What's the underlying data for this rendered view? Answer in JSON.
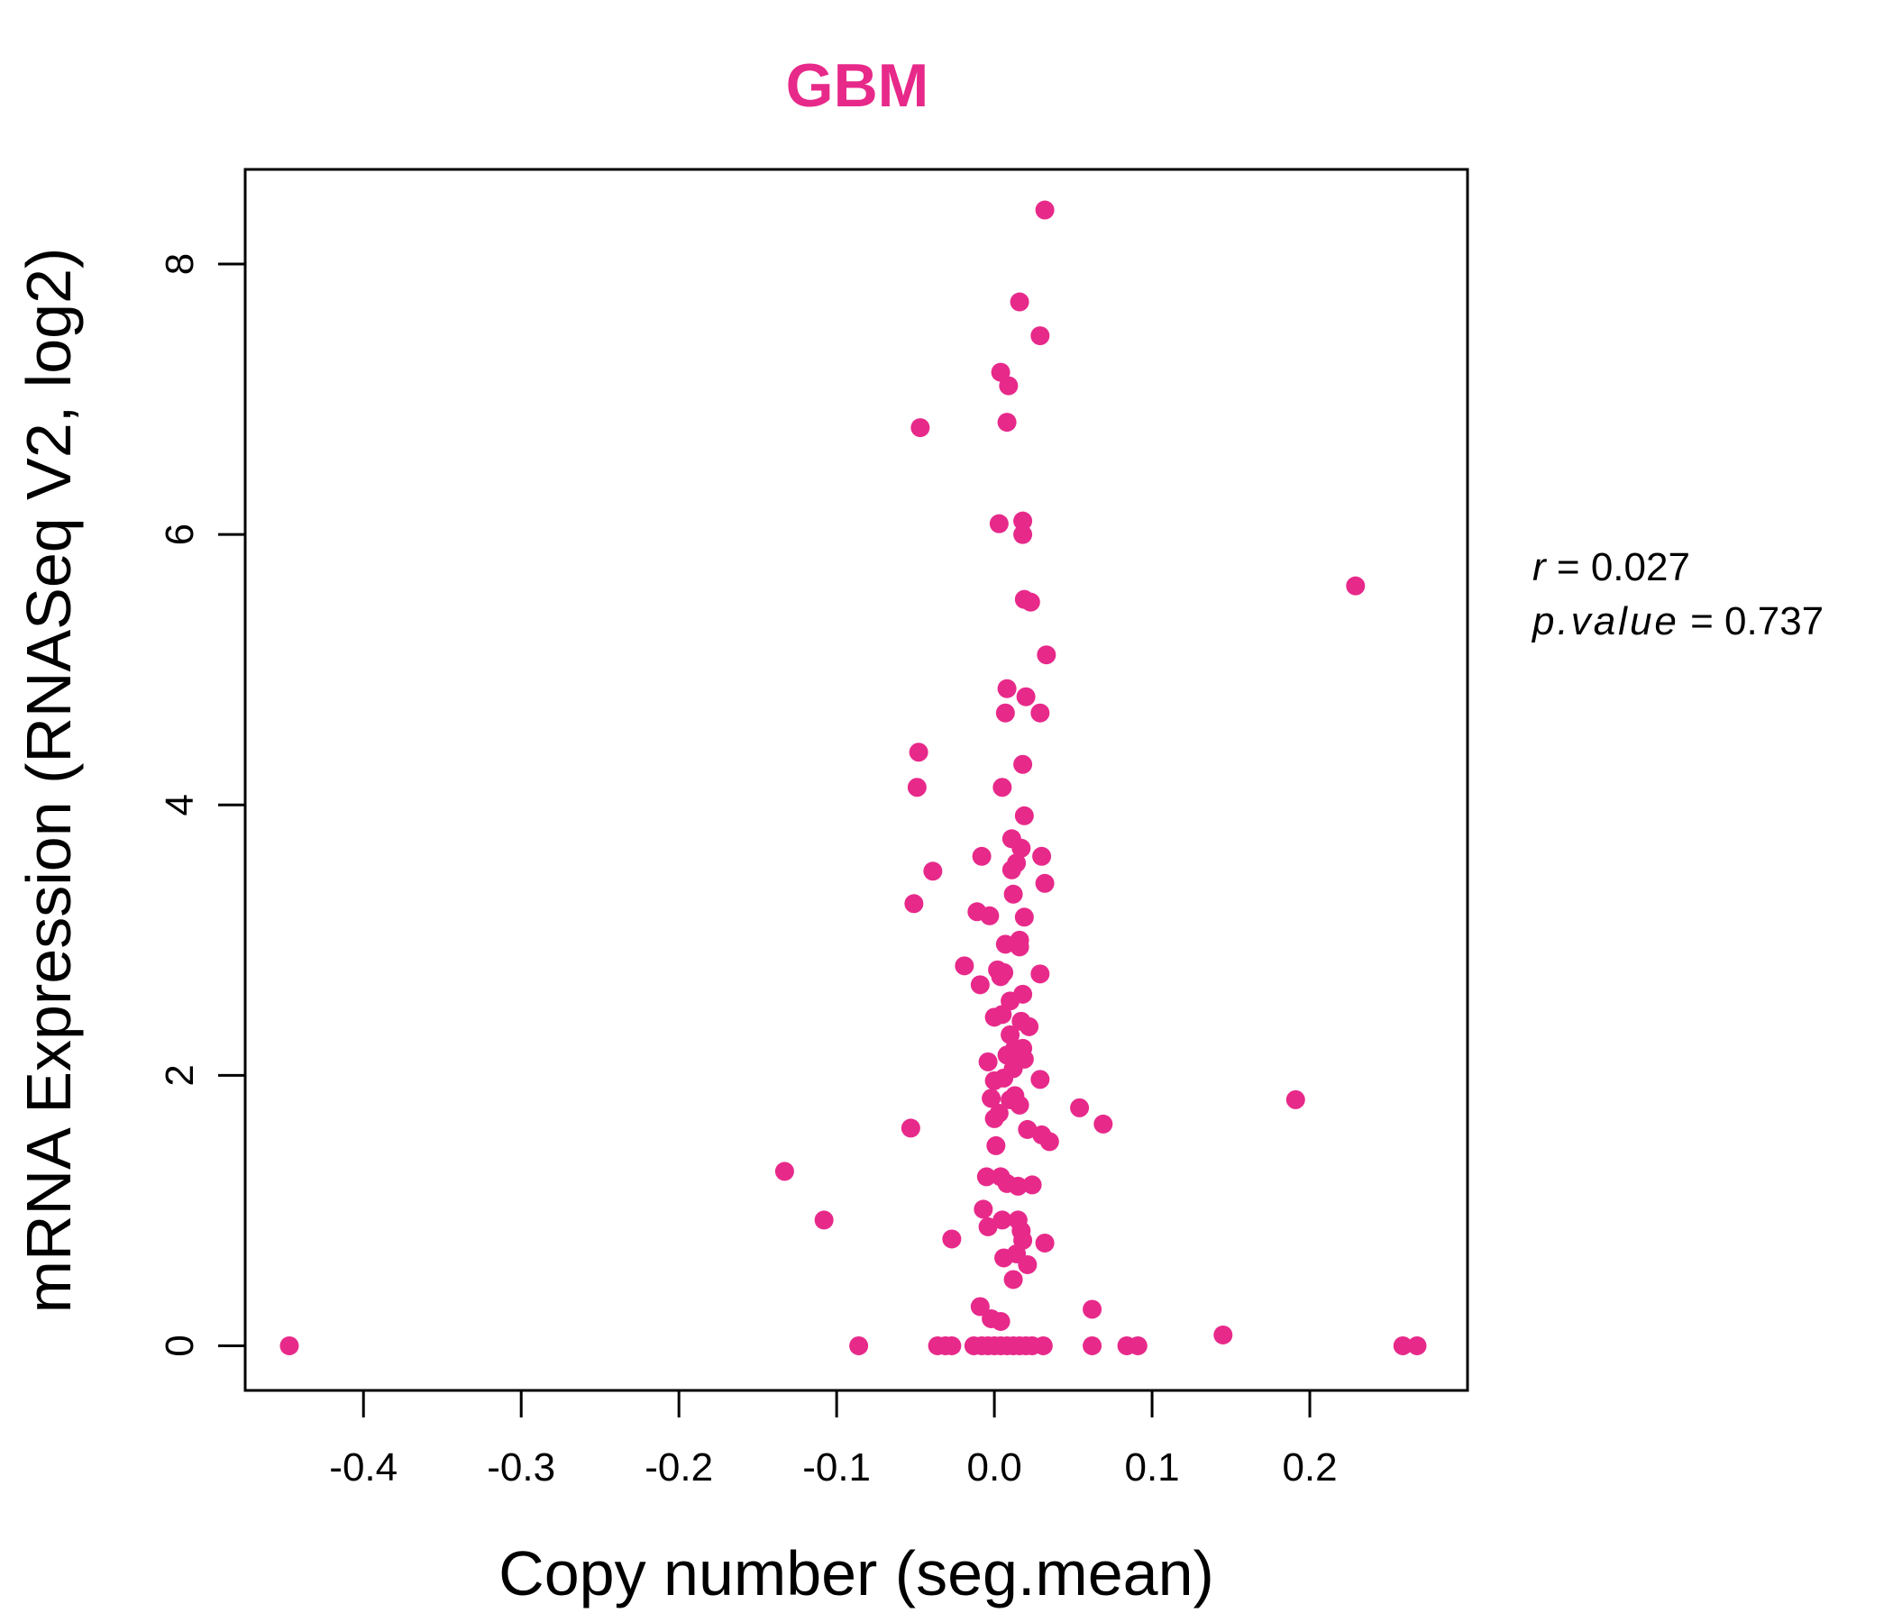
{
  "chart_data": {
    "type": "scatter",
    "title": "GBM",
    "xlabel": "Copy number (seg.mean)",
    "ylabel": "mRNA Expression (RNASeq V2, log2)",
    "xlim": [
      -0.475,
      0.3
    ],
    "ylim": [
      -0.33,
      8.7
    ],
    "x_ticks": [
      -0.4,
      -0.3,
      -0.2,
      -0.1,
      0.0,
      0.1,
      0.2
    ],
    "x_tick_labels": [
      "-0.4",
      "-0.3",
      "-0.2",
      "-0.1",
      "0.0",
      "0.1",
      "0.2"
    ],
    "y_ticks": [
      0,
      2,
      4,
      6,
      8
    ],
    "y_tick_labels": [
      "0",
      "2",
      "4",
      "6",
      "8"
    ],
    "grid": false,
    "colors": {
      "point": "#E7298A",
      "title": "#E7298A",
      "axis": "#000000"
    },
    "points": [
      [
        0.032,
        8.4
      ],
      [
        0.016,
        7.72
      ],
      [
        0.029,
        7.47
      ],
      [
        0.004,
        7.2
      ],
      [
        0.009,
        7.1
      ],
      [
        0.008,
        6.83
      ],
      [
        -0.047,
        6.79
      ],
      [
        0.003,
        6.08
      ],
      [
        0.018,
        6.1
      ],
      [
        0.018,
        6.0
      ],
      [
        0.229,
        5.62
      ],
      [
        0.019,
        5.52
      ],
      [
        0.023,
        5.5
      ],
      [
        0.033,
        5.11
      ],
      [
        0.008,
        4.86
      ],
      [
        0.02,
        4.8
      ],
      [
        0.007,
        4.68
      ],
      [
        0.029,
        4.68
      ],
      [
        -0.048,
        4.39
      ],
      [
        0.018,
        4.3
      ],
      [
        -0.049,
        4.13
      ],
      [
        0.005,
        4.13
      ],
      [
        0.019,
        3.92
      ],
      [
        0.011,
        3.75
      ],
      [
        0.017,
        3.68
      ],
      [
        -0.008,
        3.62
      ],
      [
        0.03,
        3.62
      ],
      [
        0.014,
        3.57
      ],
      [
        0.011,
        3.52
      ],
      [
        -0.039,
        3.51
      ],
      [
        0.032,
        3.42
      ],
      [
        0.012,
        3.34
      ],
      [
        -0.051,
        3.27
      ],
      [
        -0.011,
        3.21
      ],
      [
        -0.003,
        3.18
      ],
      [
        0.019,
        3.17
      ],
      [
        0.016,
        3.0
      ],
      [
        0.007,
        2.97
      ],
      [
        0.016,
        2.95
      ],
      [
        -0.019,
        2.81
      ],
      [
        0.002,
        2.78
      ],
      [
        0.006,
        2.76
      ],
      [
        0.029,
        2.75
      ],
      [
        0.004,
        2.73
      ],
      [
        -0.009,
        2.67
      ],
      [
        0.018,
        2.6
      ],
      [
        0.01,
        2.55
      ],
      [
        0.005,
        2.45
      ],
      [
        0.0,
        2.43
      ],
      [
        0.017,
        2.4
      ],
      [
        0.022,
        2.36
      ],
      [
        0.01,
        2.3
      ],
      [
        0.013,
        2.2
      ],
      [
        0.018,
        2.2
      ],
      [
        0.008,
        2.15
      ],
      [
        -0.004,
        2.1
      ],
      [
        0.019,
        2.12
      ],
      [
        0.012,
        2.05
      ],
      [
        0.006,
        1.98
      ],
      [
        0.0,
        1.96
      ],
      [
        0.029,
        1.97
      ],
      [
        0.013,
        1.85
      ],
      [
        -0.002,
        1.83
      ],
      [
        0.01,
        1.82
      ],
      [
        0.016,
        1.78
      ],
      [
        0.054,
        1.76
      ],
      [
        0.191,
        1.82
      ],
      [
        0.003,
        1.72
      ],
      [
        0.0,
        1.68
      ],
      [
        0.069,
        1.64
      ],
      [
        -0.053,
        1.61
      ],
      [
        0.021,
        1.6
      ],
      [
        0.03,
        1.56
      ],
      [
        0.035,
        1.51
      ],
      [
        0.001,
        1.48
      ],
      [
        -0.133,
        1.29
      ],
      [
        -0.005,
        1.25
      ],
      [
        0.004,
        1.25
      ],
      [
        0.008,
        1.2
      ],
      [
        0.015,
        1.18
      ],
      [
        0.024,
        1.19
      ],
      [
        -0.108,
        0.93
      ],
      [
        -0.007,
        1.01
      ],
      [
        0.005,
        0.93
      ],
      [
        0.015,
        0.93
      ],
      [
        -0.004,
        0.88
      ],
      [
        0.017,
        0.85
      ],
      [
        -0.027,
        0.79
      ],
      [
        0.018,
        0.78
      ],
      [
        0.032,
        0.76
      ],
      [
        0.006,
        0.65
      ],
      [
        0.014,
        0.68
      ],
      [
        0.021,
        0.6
      ],
      [
        0.012,
        0.49
      ],
      [
        -0.009,
        0.29
      ],
      [
        0.062,
        0.27
      ],
      [
        -0.002,
        0.2
      ],
      [
        0.004,
        0.18
      ],
      [
        0.145,
        0.08
      ],
      [
        -0.447,
        0.0
      ],
      [
        -0.086,
        0.0
      ],
      [
        -0.036,
        0.0
      ],
      [
        -0.031,
        0.0
      ],
      [
        -0.027,
        0.0
      ],
      [
        -0.013,
        0.0
      ],
      [
        -0.008,
        0.0
      ],
      [
        -0.004,
        0.0
      ],
      [
        0.0,
        0.0
      ],
      [
        0.004,
        0.0
      ],
      [
        0.008,
        0.0
      ],
      [
        0.012,
        0.0
      ],
      [
        0.016,
        0.0
      ],
      [
        0.02,
        0.0
      ],
      [
        0.024,
        0.0
      ],
      [
        0.031,
        0.0
      ],
      [
        0.062,
        0.0
      ],
      [
        0.084,
        0.0
      ],
      [
        0.091,
        0.0
      ],
      [
        0.259,
        0.0
      ],
      [
        0.268,
        0.0
      ]
    ]
  },
  "stats": {
    "r_symbol": "r",
    "r_value": "0.027",
    "p_symbol": "p.value",
    "p_value": "0.737"
  }
}
